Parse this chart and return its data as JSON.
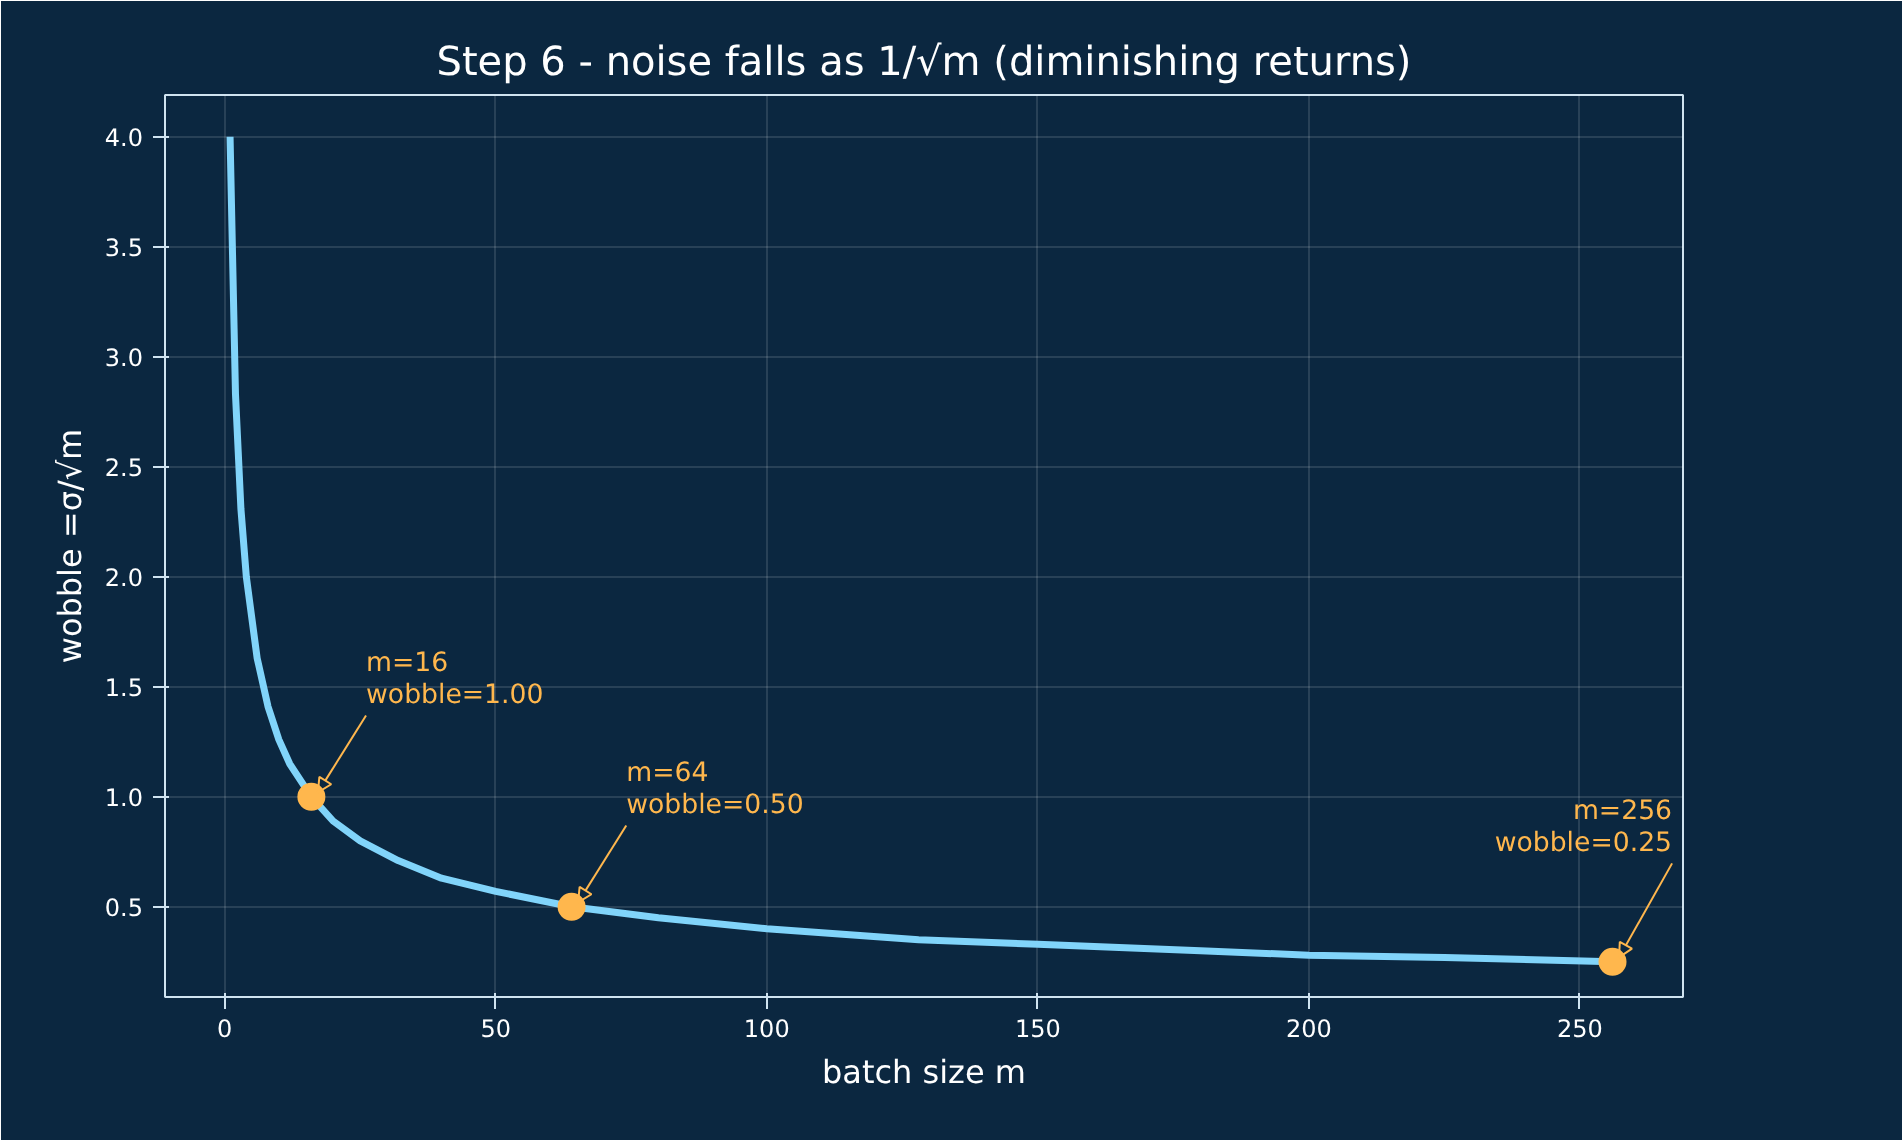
{
  "chart_data": {
    "type": "line",
    "title": "Step 6 - noise falls as 1/√m (diminishing returns)",
    "xlabel": "batch size m",
    "ylabel": "wobble =σ/√m",
    "xlim": [
      -11,
      269
    ],
    "xticks": [
      0,
      50,
      100,
      150,
      200,
      250
    ],
    "ylim": [
      0.09,
      4.19
    ],
    "yticks": [
      {
        "value": 0.5,
        "label": "0.5"
      },
      {
        "value": 1.0,
        "label": "1.0"
      },
      {
        "value": 1.5,
        "label": "1.5"
      },
      {
        "value": 2.0,
        "label": "2.0"
      },
      {
        "value": 2.5,
        "label": "2.5"
      },
      {
        "value": 3.0,
        "label": "3.0"
      },
      {
        "value": 3.5,
        "label": "3.5"
      },
      {
        "value": 4.0,
        "label": "4.0"
      }
    ],
    "grid": true,
    "series": [
      {
        "color": "#81d4fa",
        "x": [
          1,
          2,
          3,
          4,
          6,
          8,
          10,
          12,
          16,
          20,
          25,
          32,
          40,
          50,
          64,
          80,
          100,
          128,
          150,
          180,
          200,
          225,
          256
        ],
        "values": [
          4.0,
          2.83,
          2.31,
          2.0,
          1.63,
          1.41,
          1.26,
          1.15,
          1.0,
          0.89,
          0.8,
          0.71,
          0.63,
          0.57,
          0.5,
          0.45,
          0.4,
          0.35,
          0.33,
          0.3,
          0.28,
          0.27,
          0.25
        ]
      },
      {
        "type": "scatter",
        "color": "#ffb74d",
        "marker": "circle",
        "x": [
          16,
          64,
          256
        ],
        "values": [
          1.0,
          0.5,
          0.25
        ]
      }
    ],
    "annotations": [
      {
        "text": "m=16\nwobble=1.00",
        "x": 16,
        "y": 1.0
      },
      {
        "text": "m=64\nwobble=0.50",
        "x": 64,
        "y": 0.5
      },
      {
        "text": "m=256\nwobble=0.25",
        "x": 256,
        "y": 0.25
      }
    ]
  }
}
